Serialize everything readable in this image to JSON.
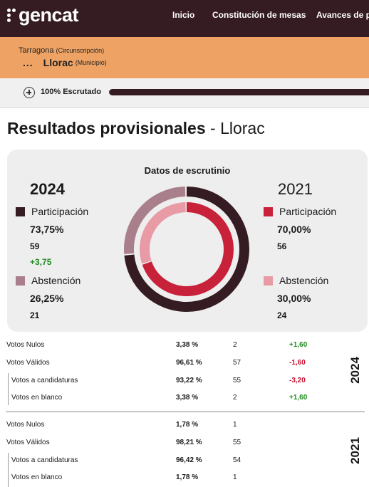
{
  "header": {
    "logo_text": "gencat",
    "nav": [
      "Inicio",
      "Constitución de mesas",
      "Avances de pa"
    ]
  },
  "location": {
    "circunscripcion": "Tarragona",
    "circunscripcion_label": "(Circunscripción)",
    "municipio": "Llorac",
    "municipio_label": "(Municipio)",
    "more": "..."
  },
  "progress": {
    "text": "100%  Escrutado",
    "percent": 100
  },
  "title": {
    "bold": "Resultados provisionales",
    "rest": " - Llorac"
  },
  "escrutinio": {
    "title": "Datos de escrutinio",
    "y2024": {
      "year": "2024",
      "participacion_label": "Participación",
      "participacion_pct": "73,75%",
      "participacion_num": "59",
      "participacion_diff": "+3,75",
      "abstencion_label": "Abstención",
      "abstencion_pct": "26,25%",
      "abstencion_num": "21"
    },
    "y2021": {
      "year": "2021",
      "participacion_label": "Participación",
      "participacion_pct": "70,00%",
      "participacion_num": "56",
      "abstencion_label": "Abstención",
      "abstencion_pct": "30,00%",
      "abstencion_num": "24"
    },
    "donut": {
      "outer_participation": 73.75,
      "inner_participation": 70.0
    },
    "colors": {
      "participacion_2024": "#351b22",
      "abstencion_2024": "#a87f8a",
      "participacion_2021": "#c8213a",
      "abstencion_2021": "#e89ba5"
    }
  },
  "results": {
    "y2024": {
      "label": "2024",
      "rows": [
        {
          "label": "Votos Nulos",
          "pct": "3,38 %",
          "num": "2",
          "diff": "+1,60"
        },
        {
          "label": "Votos Válidos",
          "pct": "96,61 %",
          "num": "57",
          "diff": "-1,60"
        },
        {
          "label": "Votos a candidaturas",
          "pct": "93,22 %",
          "num": "55",
          "diff": "-3,20"
        },
        {
          "label": "Votos en blanco",
          "pct": "3,38 %",
          "num": "2",
          "diff": "+1,60"
        }
      ]
    },
    "y2021": {
      "label": "2021",
      "rows": [
        {
          "label": "Votos Nulos",
          "pct": "1,78 %",
          "num": "1"
        },
        {
          "label": "Votos Válidos",
          "pct": "98,21 %",
          "num": "55"
        },
        {
          "label": "Votos a candidaturas",
          "pct": "96,42 %",
          "num": "54"
        },
        {
          "label": "Votos en blanco",
          "pct": "1,78 %",
          "num": "1"
        }
      ]
    }
  }
}
